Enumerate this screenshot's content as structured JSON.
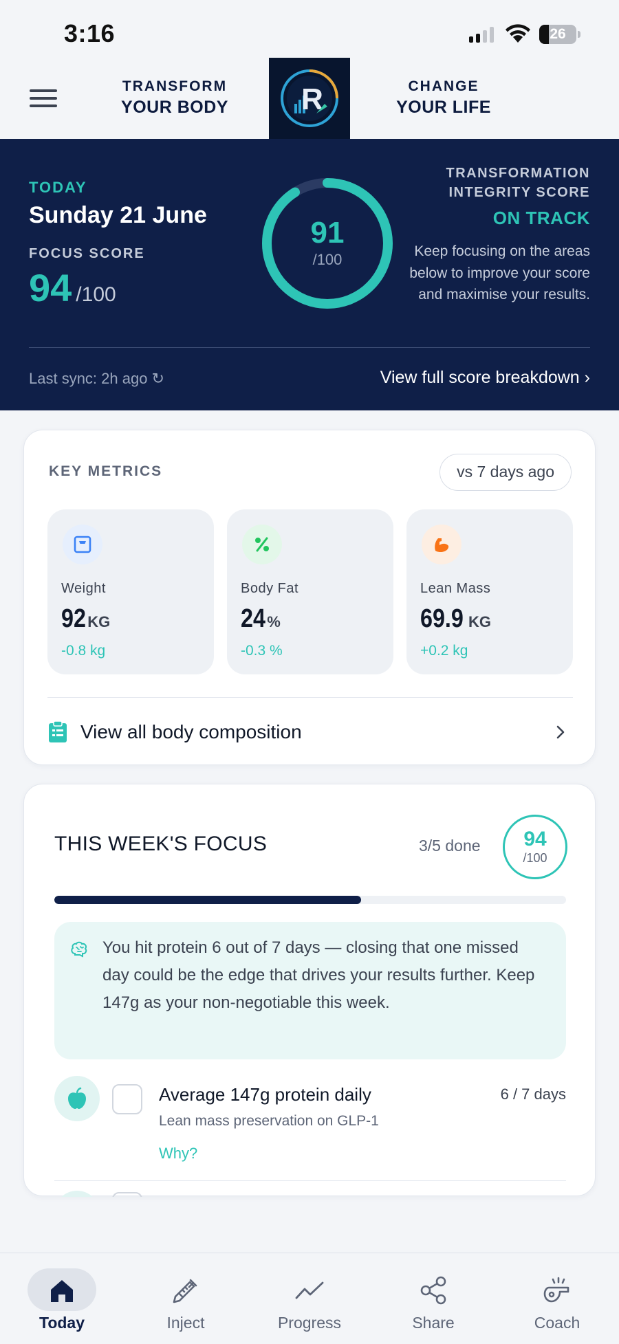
{
  "status_bar": {
    "time": "3:16",
    "battery": "26",
    "battery_level": 0.26
  },
  "header": {
    "menu_icon": "hamburger-menu-icon",
    "left_tagline": {
      "line1": "TRANSFORM",
      "line2": "YOUR BODY"
    },
    "right_tagline": {
      "line1": "CHANGE",
      "line2": "YOUR LIFE"
    },
    "logo_letter": "R"
  },
  "hero": {
    "today_label": "TODAY",
    "date": "Sunday 21 June",
    "focus_label": "FOCUS SCORE",
    "focus_score": "94",
    "focus_denominator": "/100",
    "integrity_score": "91",
    "integrity_denominator": "/100",
    "integrity_fraction": 0.91,
    "integrity_title_line1": "TRANSFORMATION",
    "integrity_title_line2": "INTEGRITY SCORE",
    "status": "ON TRACK",
    "description": "Keep focusing on the areas below to improve your score and maximise your results.",
    "last_sync": "Last sync: 2h ago ↻",
    "breakdown_link": "View full score breakdown ›",
    "accent": "#2ec4b6",
    "background": "#0f1f48"
  },
  "key_metrics": {
    "title": "KEY METRICS",
    "comparison": "vs 7 days ago",
    "items": [
      {
        "icon": "scale-icon",
        "label": "Weight",
        "value": "92",
        "unit": "KG",
        "delta": "-0.8 kg",
        "icon_color": "#3b82f6"
      },
      {
        "icon": "percent-icon",
        "label": "Body Fat",
        "value": "24",
        "unit": "%",
        "delta": "-0.3 %",
        "icon_color": "#22c55e"
      },
      {
        "icon": "flexed-arm-icon",
        "label": "Lean Mass",
        "value": "69.9",
        "unit": "KG",
        "delta": "+0.2 kg",
        "icon_color": "#f97316"
      }
    ],
    "link_label": "View all body composition"
  },
  "weekly_focus": {
    "title": "THIS WEEK'S FOCUS",
    "done": "3/5 done",
    "done_fraction": 0.6,
    "score": "94",
    "score_denominator": "/100",
    "tip": "You hit protein 6 out of 7 days — closing that one missed day could be the edge that drives your results further. Keep 147g as your non-negotiable this week.",
    "tasks": [
      {
        "icon": "apple-icon",
        "name": "Average 147g protein daily",
        "subtitle": "Lean mass preservation on GLP-1",
        "why": "Why?",
        "count": "6 / 7 days"
      }
    ]
  },
  "tabbar": {
    "tabs": [
      {
        "label": "Today",
        "icon": "home-icon",
        "active": true
      },
      {
        "label": "Inject",
        "icon": "syringe-icon"
      },
      {
        "label": "Progress",
        "icon": "trend-line-icon"
      },
      {
        "label": "Share",
        "icon": "share-icon"
      },
      {
        "label": "Coach",
        "icon": "coach-whistle-icon"
      }
    ]
  }
}
